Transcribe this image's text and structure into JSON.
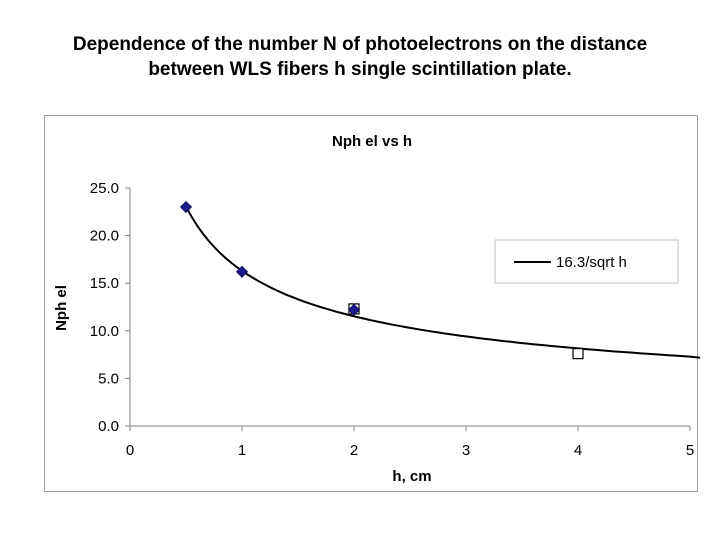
{
  "slide": {
    "title_line1": "Dependence of the number N of photoelectrons on the distance",
    "title_line2": "between WLS fibers h single scintillation plate."
  },
  "chart_data": {
    "type": "scatter",
    "title": "Nph el  vs  h",
    "xlabel": "h, cm",
    "ylabel": "Nph el",
    "xlim": [
      0,
      5
    ],
    "ylim": [
      0,
      25
    ],
    "x_ticks": [
      "0",
      "1",
      "2",
      "3",
      "4",
      "5"
    ],
    "y_ticks": [
      "0.0",
      "5.0",
      "10.0",
      "15.0",
      "20.0",
      "25.0"
    ],
    "grid": false,
    "legend_position": "right",
    "series": [
      {
        "marker": "diamond",
        "color": "#1a1a8c",
        "points": [
          {
            "x": 0.5,
            "y": 23.0
          },
          {
            "x": 1,
            "y": 16.2
          },
          {
            "x": 2,
            "y": 12.2
          }
        ]
      },
      {
        "marker": "square-open",
        "color": "#000000",
        "points": [
          {
            "x": 2,
            "y": 12.3
          },
          {
            "x": 4,
            "y": 7.6
          }
        ]
      },
      {
        "name": "16.3/sqrt h",
        "type": "line",
        "color": "#000000",
        "formula": "16.3/sqrt(h)",
        "x_range": [
          0.5,
          5
        ]
      }
    ]
  }
}
